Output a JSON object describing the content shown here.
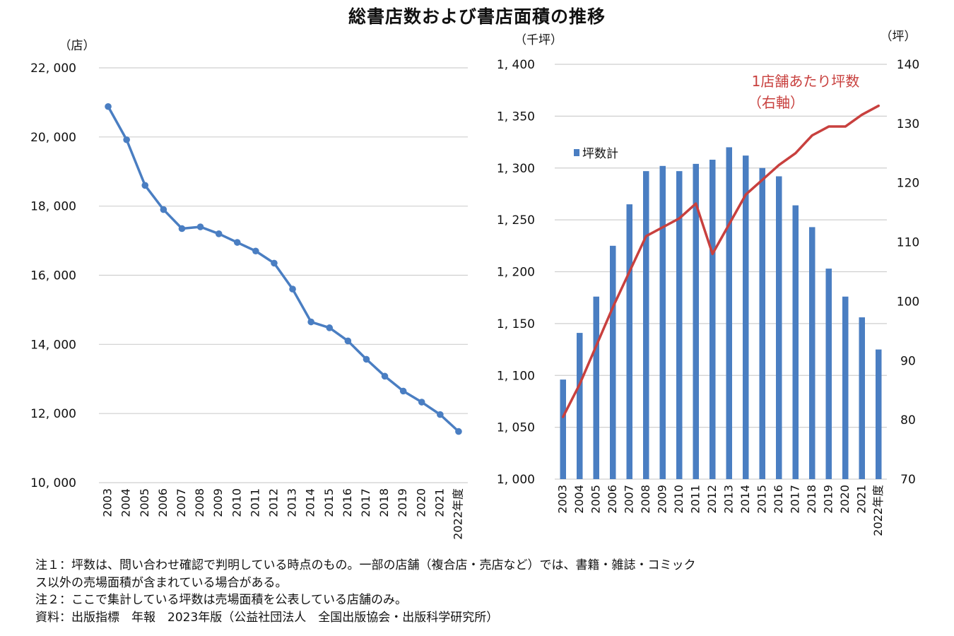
{
  "page_title": "総書店数および書店面積の推移",
  "chart_data": [
    {
      "type": "line",
      "y_unit_label": "（店）",
      "ylim": [
        10000,
        22000
      ],
      "yticks": [
        10000,
        12000,
        14000,
        16000,
        18000,
        20000,
        22000
      ],
      "ytick_labels": [
        "10, 000",
        "12, 000",
        "14, 000",
        "16, 000",
        "18, 000",
        "20, 000",
        "22, 000"
      ],
      "categories": [
        "2003",
        "2004",
        "2005",
        "2006",
        "2007",
        "2008",
        "2009",
        "2010",
        "2011",
        "2012",
        "2013",
        "2014",
        "2015",
        "2016",
        "2017",
        "2018",
        "2019",
        "2020",
        "2021",
        "2022年度"
      ],
      "values": [
        20880,
        19920,
        18600,
        17900,
        17350,
        17400,
        17200,
        16950,
        16700,
        16350,
        15600,
        14650,
        14480,
        14100,
        13570,
        13080,
        12650,
        12330,
        11970,
        11480
      ],
      "color": "#4a7ec2",
      "grid": true
    },
    {
      "type": "bar+line",
      "left_axis_unit_label": "（千坪）",
      "right_axis_unit_label": "（坪）",
      "ylim_left": [
        1000,
        1400
      ],
      "yticks_left": [
        1000,
        1050,
        1100,
        1150,
        1200,
        1250,
        1300,
        1350,
        1400
      ],
      "ytick_labels_left": [
        "1, 000",
        "1, 050",
        "1, 100",
        "1, 150",
        "1, 200",
        "1, 250",
        "1, 300",
        "1, 350",
        "1, 400"
      ],
      "ylim_right": [
        70,
        140
      ],
      "yticks_right": [
        70,
        80,
        90,
        100,
        110,
        120,
        130,
        140
      ],
      "ytick_labels_right": [
        "70",
        "80",
        "90",
        "100",
        "110",
        "120",
        "130",
        "140"
      ],
      "categories": [
        "2003",
        "2004",
        "2005",
        "2006",
        "2007",
        "2008",
        "2009",
        "2010",
        "2011",
        "2012",
        "2013",
        "2014",
        "2015",
        "2016",
        "2017",
        "2018",
        "2019",
        "2020",
        "2021",
        "2022年度"
      ],
      "series": [
        {
          "name": "坪数計",
          "type": "bar",
          "axis": "left",
          "color": "#4a7ec2",
          "values": [
            1096,
            1141,
            1176,
            1225,
            1265,
            1297,
            1302,
            1297,
            1304,
            1308,
            1320,
            1312,
            1300,
            1292,
            1264,
            1243,
            1203,
            1176,
            1156,
            1125
          ]
        },
        {
          "name": "1店舗あたり坪数",
          "name_note": "（右軸）",
          "type": "line",
          "axis": "right",
          "color": "#c8403e",
          "values": [
            80.5,
            86,
            92.5,
            99,
            105,
            111,
            112.5,
            114,
            116.5,
            108,
            113,
            118,
            120.5,
            123,
            125,
            128,
            129.5,
            129.5,
            131.5,
            133
          ]
        }
      ],
      "legend_placement": "upper-left"
    }
  ],
  "notes": [
    "注１：坪数は、問い合わせ確認で判明している時点のもの。一部の店舗（複合店・売店など）では、書籍・雑誌・コミック",
    "ス以外の売場面積が含まれている場合がある。",
    "注２：ここで集計している坪数は売場面積を公表している店舗のみ。",
    "資料：出版指標　年報　2023年版（公益社団法人　全国出版協会・出版科学研究所）"
  ]
}
